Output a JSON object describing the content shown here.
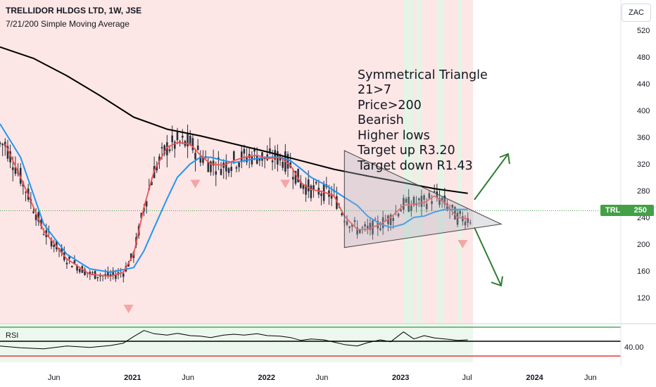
{
  "header": {
    "title": "TRELLIDOR HLDGS LTD, 1W, JSE",
    "indicator": "7/21/200 Simple Moving Average",
    "currency": "ZAC"
  },
  "annotations": {
    "lines": [
      "Symmetrical Triangle",
      "21>7",
      "Price>200",
      "Bearish",
      "Higher lows",
      "Target up R3.20",
      "Target down R1.43"
    ]
  },
  "price_tag": {
    "symbol": "TRL",
    "value": "250"
  },
  "rsi": {
    "label": "RSI",
    "level_label": "40.00"
  },
  "colors": {
    "up_candle": "#26a69a",
    "down_candle": "#ef5350",
    "sma7": "#f05454",
    "sma21": "#2196f3",
    "sma200": "#000000",
    "bg_bearish": "#fde6e6",
    "bg_bullish": "#e4f5e6",
    "arrows": "#2e7d32",
    "price_tag": "#43a047"
  },
  "chart_data": [
    {
      "type": "line",
      "subtype": "candlestick",
      "y_ticks": [
        120,
        160,
        200,
        240,
        280,
        320,
        360,
        400,
        440,
        480,
        520
      ],
      "ylim": [
        90,
        560
      ],
      "x_tick_labels": [
        "Jun",
        "2021",
        "Jun",
        "2022",
        "Jun",
        "2023",
        "Jul",
        "2024",
        "Jun"
      ],
      "x_tick_dates": [
        "2020-06-01",
        "2021-01-01",
        "2021-06-01",
        "2022-01-01",
        "2022-06-01",
        "2023-01-01",
        "2023-07-01",
        "2024-01-01",
        "2024-06-01"
      ],
      "x_range": [
        "2020-01-06",
        "2024-09-30"
      ],
      "last_price": 250,
      "series": [
        {
          "name": "SMA 7",
          "x": [
            "2020-01-20",
            "2020-03-02",
            "2020-05-04",
            "2020-07-06",
            "2020-09-07",
            "2020-11-02",
            "2020-12-07",
            "2021-01-04",
            "2021-02-01",
            "2021-03-01",
            "2021-04-05",
            "2021-05-03",
            "2021-06-07",
            "2021-07-05",
            "2021-08-02",
            "2021-09-06",
            "2021-10-04",
            "2021-11-01",
            "2021-12-06",
            "2022-01-03",
            "2022-02-07",
            "2022-03-07",
            "2022-04-04",
            "2022-05-02",
            "2022-06-06",
            "2022-07-04",
            "2022-08-01",
            "2022-09-05",
            "2022-10-03",
            "2022-11-07",
            "2022-12-05",
            "2023-01-09",
            "2023-02-06",
            "2023-03-06",
            "2023-04-03",
            "2023-05-01",
            "2023-06-05",
            "2023-07-03"
          ],
          "values": [
            350,
            300,
            220,
            178,
            155,
            152,
            158,
            185,
            255,
            310,
            345,
            352,
            350,
            333,
            320,
            318,
            325,
            330,
            333,
            328,
            330,
            318,
            292,
            282,
            278,
            272,
            242,
            222,
            222,
            230,
            240,
            258,
            260,
            262,
            272,
            262,
            240,
            238
          ]
        },
        {
          "name": "SMA 21",
          "x": [
            "2020-01-06",
            "2020-03-02",
            "2020-05-04",
            "2020-07-06",
            "2020-09-07",
            "2020-11-02",
            "2021-01-04",
            "2021-02-01",
            "2021-03-01",
            "2021-04-05",
            "2021-05-03",
            "2021-06-07",
            "2021-07-05",
            "2021-08-02",
            "2021-09-06",
            "2021-10-04",
            "2021-11-01",
            "2021-12-06",
            "2022-01-03",
            "2022-02-07",
            "2022-03-07",
            "2022-04-04",
            "2022-05-02",
            "2022-06-06",
            "2022-07-04",
            "2022-08-01",
            "2022-09-05",
            "2022-10-03",
            "2022-11-07",
            "2022-12-05",
            "2023-01-09",
            "2023-02-06",
            "2023-03-06",
            "2023-04-03",
            "2023-05-01",
            "2023-06-05",
            "2023-07-03"
          ],
          "values": [
            380,
            330,
            230,
            185,
            163,
            158,
            165,
            190,
            225,
            268,
            300,
            320,
            330,
            330,
            325,
            322,
            325,
            328,
            330,
            330,
            325,
            313,
            300,
            290,
            280,
            270,
            258,
            242,
            230,
            225,
            230,
            240,
            242,
            248,
            252,
            252,
            252
          ]
        },
        {
          "name": "SMA 200",
          "x": [
            "2020-01-06",
            "2020-04-06",
            "2020-07-06",
            "2020-10-05",
            "2021-01-04",
            "2021-04-05",
            "2021-07-05",
            "2021-10-04",
            "2022-01-03",
            "2022-04-04",
            "2022-07-04",
            "2022-10-03",
            "2023-01-09",
            "2023-04-03",
            "2023-07-03"
          ],
          "values": [
            495,
            478,
            452,
            422,
            390,
            372,
            362,
            350,
            338,
            325,
            312,
            302,
            292,
            283,
            276
          ]
        },
        {
          "name": "RSI",
          "x": [
            "2020-01-06",
            "2020-03-02",
            "2020-05-04",
            "2020-07-06",
            "2020-09-07",
            "2020-11-02",
            "2020-12-07",
            "2021-01-04",
            "2021-02-01",
            "2021-03-01",
            "2021-04-05",
            "2021-05-03",
            "2021-06-07",
            "2021-07-05",
            "2021-08-02",
            "2021-09-06",
            "2021-10-04",
            "2021-11-01",
            "2021-12-06",
            "2022-01-03",
            "2022-02-07",
            "2022-03-07",
            "2022-04-04",
            "2022-05-02",
            "2022-06-06",
            "2022-07-04",
            "2022-08-01",
            "2022-09-05",
            "2022-10-03",
            "2022-11-07",
            "2022-12-05",
            "2023-01-09",
            "2023-02-06",
            "2023-03-06",
            "2023-04-03",
            "2023-05-01",
            "2023-06-05",
            "2023-07-03"
          ],
          "values": [
            30,
            26,
            24,
            30,
            27,
            31,
            36,
            50,
            63,
            56,
            53,
            57,
            52,
            51,
            48,
            53,
            55,
            53,
            56,
            52,
            51,
            48,
            42,
            45,
            43,
            38,
            33,
            30,
            37,
            43,
            39,
            60,
            45,
            52,
            47,
            45,
            42,
            43
          ]
        }
      ],
      "triangle": {
        "apex": [
          "2023-10-02",
          230
        ],
        "top": [
          "2022-08-01",
          340
        ],
        "bottom": [
          "2022-08-01",
          195
        ]
      },
      "targets": {
        "up": "R3.20",
        "down": "R1.43"
      }
    }
  ]
}
